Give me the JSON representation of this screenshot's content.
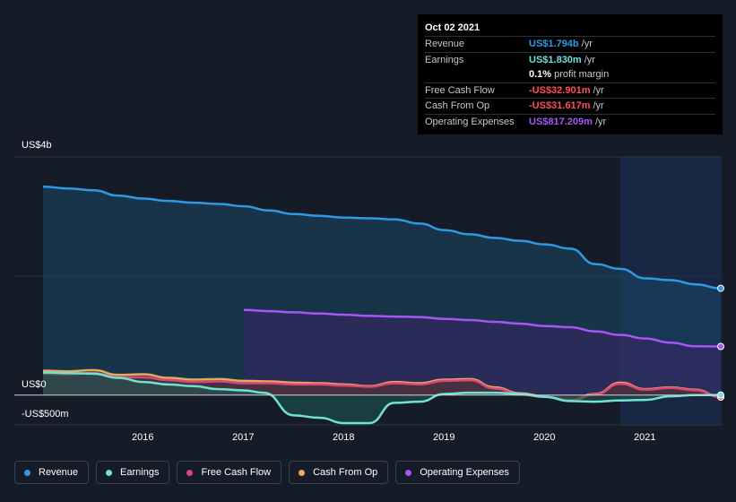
{
  "tooltip": {
    "date": "Oct 02 2021",
    "rows": [
      {
        "label": "Revenue",
        "value": "US$1.794b",
        "unit": "/yr",
        "color": "#2e9ae6"
      },
      {
        "label": "Earnings",
        "value": "US$1.830m",
        "unit": "/yr",
        "color": "#6fe3d3"
      },
      {
        "label": "",
        "value": "0.1%",
        "unit": "profit margin",
        "color": "#ffffff"
      },
      {
        "label": "Free Cash Flow",
        "value": "-US$32.901m",
        "unit": "/yr",
        "color": "#ff4d5a"
      },
      {
        "label": "Cash From Op",
        "value": "-US$31.617m",
        "unit": "/yr",
        "color": "#ff4d5a"
      },
      {
        "label": "Operating Expenses",
        "value": "US$817.209m",
        "unit": "/yr",
        "color": "#a855f7"
      }
    ]
  },
  "legend": [
    {
      "label": "Revenue",
      "color": "#2e9ae6"
    },
    {
      "label": "Earnings",
      "color": "#6fe3d3"
    },
    {
      "label": "Free Cash Flow",
      "color": "#d9467b"
    },
    {
      "label": "Cash From Op",
      "color": "#e8a95c"
    },
    {
      "label": "Operating Expenses",
      "color": "#a855f7"
    }
  ],
  "chart_data": {
    "type": "area",
    "y_unit": "US$ millions",
    "ylim": [
      -500,
      4000
    ],
    "y_tick_labels": [
      "US$4b",
      "US$0",
      "-US$500m"
    ],
    "x_tick_labels": [
      "2016",
      "2017",
      "2018",
      "2019",
      "2020",
      "2021"
    ],
    "highlight_start": 2020.75,
    "series": [
      {
        "name": "Revenue",
        "color": "#2e9ae6",
        "fill": "#1a4866",
        "x": [
          2015.0,
          2015.25,
          2015.5,
          2015.75,
          2016.0,
          2016.25,
          2016.5,
          2016.75,
          2017.0,
          2017.25,
          2017.5,
          2017.75,
          2018.0,
          2018.25,
          2018.5,
          2018.75,
          2019.0,
          2019.25,
          2019.5,
          2019.75,
          2020.0,
          2020.25,
          2020.5,
          2020.75,
          2021.0,
          2021.25,
          2021.5,
          2021.75
        ],
        "y": [
          3500,
          3470,
          3440,
          3350,
          3300,
          3260,
          3230,
          3210,
          3170,
          3100,
          3040,
          3010,
          2980,
          2970,
          2950,
          2880,
          2770,
          2700,
          2640,
          2590,
          2530,
          2460,
          2200,
          2120,
          1960,
          1930,
          1860,
          1794
        ]
      },
      {
        "name": "Operating Expenses",
        "color": "#a855f7",
        "fill": "#3b2466",
        "x": [
          2017.0,
          2017.25,
          2017.5,
          2017.75,
          2018.0,
          2018.25,
          2018.5,
          2018.75,
          2019.0,
          2019.25,
          2019.5,
          2019.75,
          2020.0,
          2020.25,
          2020.5,
          2020.75,
          2021.0,
          2021.25,
          2021.5,
          2021.75
        ],
        "y": [
          1430,
          1410,
          1390,
          1370,
          1350,
          1330,
          1320,
          1310,
          1280,
          1260,
          1230,
          1200,
          1160,
          1140,
          1070,
          1010,
          950,
          880,
          820,
          817
        ]
      },
      {
        "name": "Cash From Op",
        "color": "#e8a95c",
        "fill": "#5a4a38",
        "x": [
          2015.0,
          2015.25,
          2015.5,
          2015.75,
          2016.0,
          2016.25,
          2016.5,
          2016.75,
          2017.0,
          2017.25,
          2017.5,
          2017.75,
          2018.0,
          2018.25,
          2018.5,
          2018.75,
          2019.0,
          2019.25,
          2019.5,
          2019.75,
          2020.0,
          2020.25,
          2020.5,
          2020.75,
          2021.0,
          2021.25,
          2021.5,
          2021.75
        ],
        "y": [
          410,
          400,
          420,
          340,
          350,
          290,
          260,
          270,
          240,
          230,
          210,
          200,
          180,
          150,
          220,
          200,
          260,
          270,
          130,
          30,
          -20,
          -80,
          20,
          210,
          100,
          130,
          90,
          -32
        ]
      },
      {
        "name": "Free Cash Flow",
        "color": "#d9467b",
        "fill": "#4a2538",
        "x": [
          2015.0,
          2015.25,
          2015.5,
          2015.75,
          2016.0,
          2016.25,
          2016.5,
          2016.75,
          2017.0,
          2017.25,
          2017.5,
          2017.75,
          2018.0,
          2018.25,
          2018.5,
          2018.75,
          2019.0,
          2019.25,
          2019.5,
          2019.75,
          2020.0,
          2020.25,
          2020.5,
          2020.75,
          2021.0,
          2021.25,
          2021.5,
          2021.75
        ],
        "y": [
          360,
          350,
          370,
          300,
          300,
          250,
          220,
          230,
          200,
          200,
          180,
          180,
          160,
          140,
          200,
          180,
          240,
          250,
          110,
          10,
          -30,
          -90,
          10,
          190,
          90,
          120,
          80,
          -33
        ]
      },
      {
        "name": "Earnings",
        "color": "#6fe3d3",
        "fill": "#1f5a55",
        "x": [
          2015.0,
          2015.25,
          2015.5,
          2015.75,
          2016.0,
          2016.25,
          2016.5,
          2016.75,
          2017.0,
          2017.2,
          2017.5,
          2017.75,
          2018.0,
          2018.25,
          2018.5,
          2018.75,
          2019.0,
          2019.25,
          2019.5,
          2019.75,
          2020.0,
          2020.25,
          2020.5,
          2020.75,
          2021.0,
          2021.25,
          2021.5,
          2021.75
        ],
        "y": [
          380,
          370,
          360,
          290,
          220,
          180,
          150,
          100,
          80,
          40,
          -340,
          -380,
          -470,
          -470,
          -130,
          -110,
          20,
          40,
          40,
          20,
          -30,
          -100,
          -110,
          -90,
          -80,
          -20,
          0,
          2
        ]
      }
    ]
  }
}
